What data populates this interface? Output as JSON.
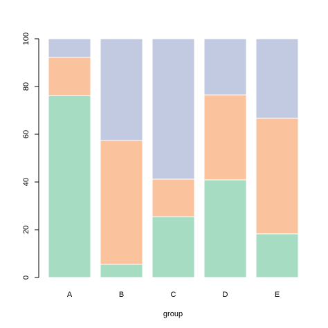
{
  "chart_data": {
    "type": "stacked-bar",
    "categories": [
      "A",
      "B",
      "C",
      "D",
      "E"
    ],
    "x_label": "group",
    "series": [
      {
        "color": "#a6dcc2",
        "values": [
          76.2,
          5.5,
          25.5,
          40.9,
          18.3
        ]
      },
      {
        "color": "#fbc39d",
        "values": [
          16.0,
          51.9,
          15.7,
          35.6,
          48.4
        ]
      },
      {
        "color": "#c1cae0",
        "values": [
          7.8,
          42.6,
          58.8,
          23.5,
          33.3
        ]
      }
    ],
    "ylim": [
      0,
      100
    ],
    "yticks": [
      0,
      20,
      40,
      60,
      80,
      100
    ]
  }
}
